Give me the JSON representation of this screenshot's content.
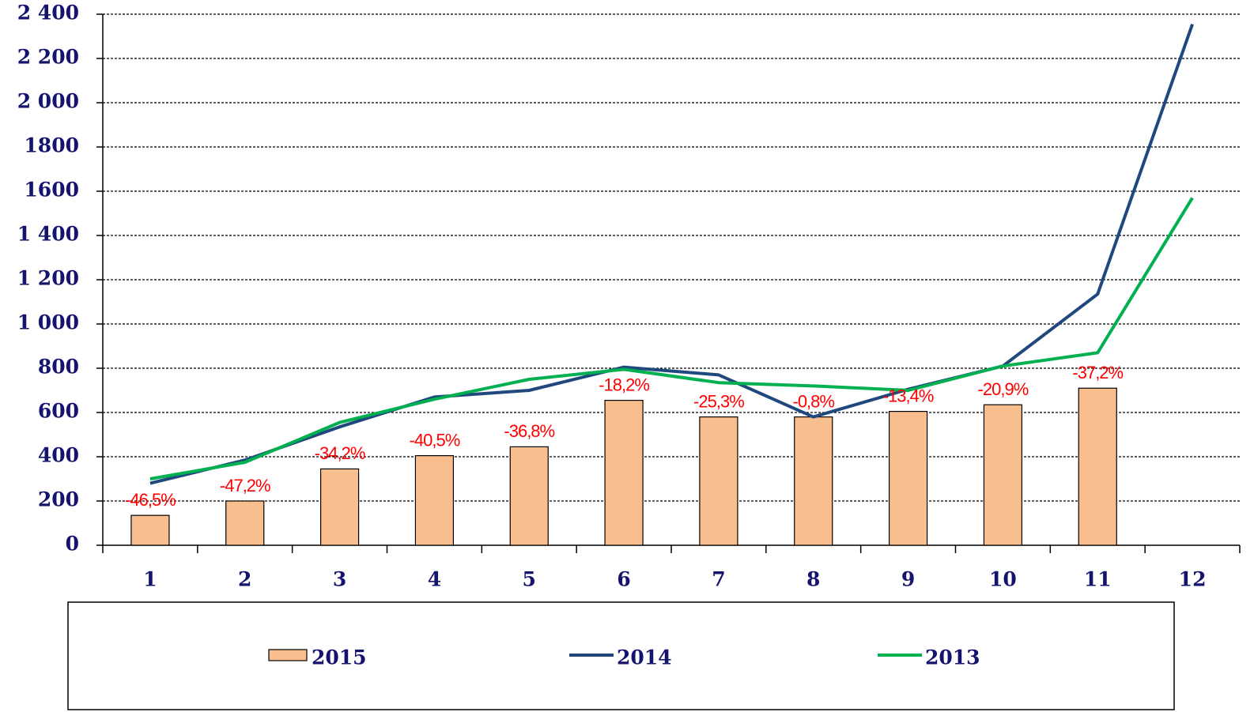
{
  "chart_data": {
    "type": "bar_line",
    "categories": [
      "1",
      "2",
      "3",
      "4",
      "5",
      "6",
      "7",
      "8",
      "9",
      "10",
      "11",
      "12"
    ],
    "series": [
      {
        "name": "2015",
        "kind": "bar",
        "color": "#f9be8e",
        "values": [
          135,
          200,
          345,
          405,
          445,
          655,
          580,
          580,
          605,
          635,
          710,
          null
        ],
        "annotations": [
          "-46,5%",
          "-47,2%",
          "-34,2%",
          "-40,5%",
          "-36,8%",
          "-18,2%",
          "-25,3%",
          "-0,8%",
          "-13,4%",
          "-20,9%",
          "-37,2%",
          null
        ]
      },
      {
        "name": "2014",
        "kind": "line",
        "color": "#1f497d",
        "values": [
          280,
          385,
          535,
          670,
          700,
          805,
          770,
          580,
          705,
          810,
          1135,
          2355
        ]
      },
      {
        "name": "2013",
        "kind": "line",
        "color": "#00b050",
        "values": [
          300,
          375,
          555,
          660,
          750,
          795,
          735,
          720,
          700,
          810,
          870,
          1570
        ]
      }
    ],
    "ylim": [
      0,
      2400
    ],
    "yticks": [
      0,
      200,
      400,
      600,
      800,
      {
        "value": 1000,
        "label": "1 000"
      },
      {
        "value": 1200,
        "label": "1 200"
      },
      {
        "value": 1400,
        "label": "1 400"
      },
      1600,
      1800,
      {
        "value": 2000,
        "label": "2 000"
      },
      {
        "value": 2200,
        "label": "2 200"
      },
      {
        "value": 2400,
        "label": "2 400"
      }
    ],
    "grid": true,
    "legend": "bottom"
  }
}
